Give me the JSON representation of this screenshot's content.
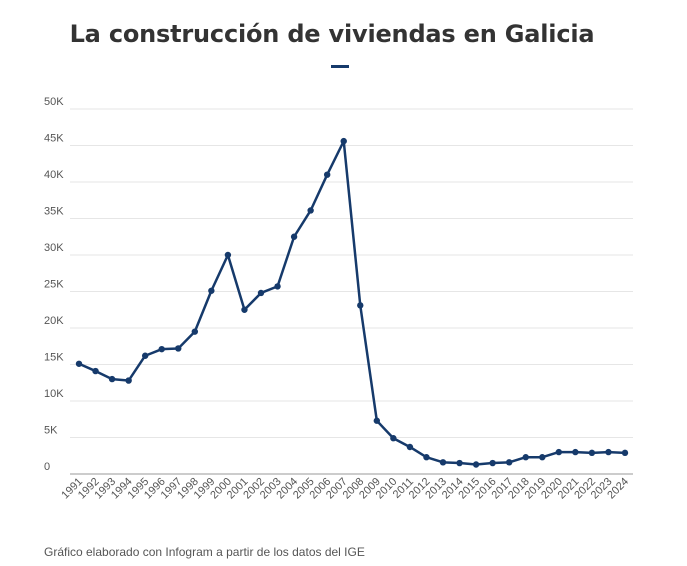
{
  "title": "La construcción de viviendas en Galicia",
  "footnote": "Gráfico elaborado con Infogram a partir de los datos del IGE",
  "colors": {
    "line": "#163a6b",
    "grid": "#e6e6e6",
    "axis": "#555555",
    "title": "#333333"
  },
  "chart_data": {
    "type": "line",
    "title": "La construcción de viviendas en Galicia",
    "xlabel": "",
    "ylabel": "",
    "ylim": [
      0,
      50000
    ],
    "y_ticks": [
      {
        "value": 0,
        "label": "0"
      },
      {
        "value": 5000,
        "label": "5K"
      },
      {
        "value": 10000,
        "label": "10K"
      },
      {
        "value": 15000,
        "label": "15K"
      },
      {
        "value": 20000,
        "label": "20K"
      },
      {
        "value": 25000,
        "label": "25K"
      },
      {
        "value": 30000,
        "label": "30K"
      },
      {
        "value": 35000,
        "label": "35K"
      },
      {
        "value": 40000,
        "label": "40K"
      },
      {
        "value": 45000,
        "label": "45K"
      },
      {
        "value": 50000,
        "label": "50K"
      }
    ],
    "categories": [
      "1991",
      "1992",
      "1993",
      "1994",
      "1995",
      "1996",
      "1997",
      "1998",
      "1999",
      "2000",
      "2001",
      "2002",
      "2003",
      "2004",
      "2005",
      "2006",
      "2007",
      "2008",
      "2009",
      "2010",
      "2011",
      "2012",
      "2013",
      "2014",
      "2015",
      "2016",
      "2017",
      "2018",
      "2019",
      "2020",
      "2021",
      "2022",
      "2023",
      "2024"
    ],
    "series": [
      {
        "values": [
          15100,
          14100,
          13000,
          12800,
          16200,
          17100,
          17200,
          19500,
          25100,
          30000,
          22500,
          24800,
          25700,
          32500,
          36100,
          41000,
          45600,
          23100,
          7300,
          4900,
          3700,
          2300,
          1600,
          1500,
          1300,
          1500,
          1600,
          2300,
          2300,
          3000,
          3000,
          2900,
          3000,
          2900
        ]
      }
    ],
    "grid": true,
    "legend": "none"
  }
}
